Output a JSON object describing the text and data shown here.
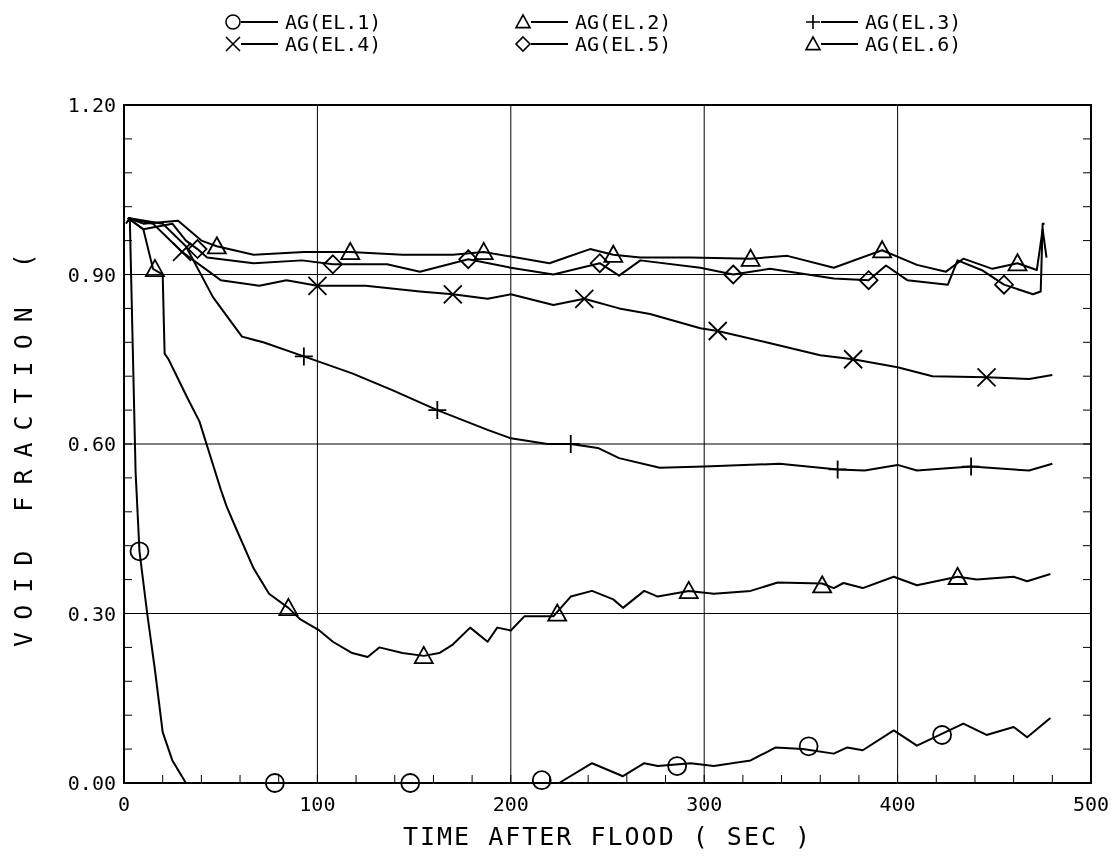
{
  "chart_data": {
    "type": "line",
    "xlabel": "TIME AFTER FLOOD  ( SEC )",
    "ylabel": "VOID FRACTION (",
    "xlim": [
      0,
      500
    ],
    "ylim": [
      0,
      1.2
    ],
    "xticks": [
      0,
      {
        "value": 20,
        "label": null
      },
      {
        "value": 40,
        "label": null
      },
      {
        "value": 60,
        "label": null
      },
      {
        "value": 80,
        "label": null
      },
      100,
      {
        "value": 120,
        "label": null
      },
      {
        "value": 140,
        "label": null
      },
      {
        "value": 160,
        "label": null
      },
      {
        "value": 180,
        "label": null
      },
      200,
      {
        "value": 220,
        "label": null
      },
      {
        "value": 240,
        "label": null
      },
      {
        "value": 260,
        "label": null
      },
      {
        "value": 280,
        "label": null
      },
      300,
      {
        "value": 320,
        "label": null
      },
      {
        "value": 340,
        "label": null
      },
      {
        "value": 360,
        "label": null
      },
      {
        "value": 380,
        "label": null
      },
      400,
      {
        "value": 420,
        "label": null
      },
      {
        "value": 440,
        "label": null
      },
      {
        "value": 460,
        "label": null
      },
      {
        "value": 480,
        "label": null
      },
      500
    ],
    "yticks": [
      {
        "value": 0,
        "label": "0.00"
      },
      {
        "value": 0.06,
        "label": null
      },
      {
        "value": 0.12,
        "label": null
      },
      {
        "value": 0.18,
        "label": null
      },
      {
        "value": 0.24,
        "label": null
      },
      {
        "value": 0.3,
        "label": "0.30"
      },
      {
        "value": 0.36,
        "label": null
      },
      {
        "value": 0.42,
        "label": null
      },
      {
        "value": 0.48,
        "label": null
      },
      {
        "value": 0.54,
        "label": null
      },
      {
        "value": 0.6,
        "label": "0.60"
      },
      {
        "value": 0.66,
        "label": null
      },
      {
        "value": 0.72,
        "label": null
      },
      {
        "value": 0.78,
        "label": null
      },
      {
        "value": 0.84,
        "label": null
      },
      {
        "value": 0.9,
        "label": "0.90"
      },
      {
        "value": 0.96,
        "label": null
      },
      {
        "value": 1.02,
        "label": null
      },
      {
        "value": 1.08,
        "label": null
      },
      {
        "value": 1.14,
        "label": null
      },
      {
        "value": 1.2,
        "label": "1.20"
      }
    ],
    "grid": true,
    "legend": "top",
    "line_style": "solid",
    "series": [
      {
        "name": "AG(EL.1)",
        "color": "#000000",
        "x": [
          1,
          3,
          5,
          6,
          8,
          12,
          16,
          20,
          25,
          32,
          100,
          200,
          225,
          242,
          258,
          269,
          276,
          293,
          305,
          324,
          337,
          351,
          367,
          374,
          382,
          398,
          410,
          434,
          446,
          460,
          467,
          479
        ],
        "values": [
          0.99,
          1.0,
          0.7,
          0.55,
          0.41,
          0.3,
          0.2,
          0.09,
          0.04,
          0,
          0,
          0,
          0,
          0.035,
          0.012,
          0.035,
          0.03,
          0.035,
          0.03,
          0.04,
          0.063,
          0.06,
          0.052,
          0.063,
          0.058,
          0.093,
          0.066,
          0.105,
          0.085,
          0.099,
          0.081,
          0.115
        ]
      },
      {
        "name": "AG(EL.2)",
        "color": "#000000",
        "x": [
          2,
          10,
          15,
          20,
          21,
          23,
          33,
          39,
          50,
          53,
          58,
          67,
          75,
          85,
          91,
          101,
          108,
          118,
          126,
          132,
          144,
          155,
          163,
          170,
          179,
          188,
          193,
          200,
          207,
          222,
          231,
          242,
          253,
          258,
          269,
          276,
          292,
          305,
          324,
          338,
          361,
          367,
          372,
          382,
          398,
          410,
          431,
          441,
          460,
          467,
          479
        ],
        "values": [
          1.0,
          0.98,
          0.91,
          0.9,
          0.76,
          0.75,
          0.68,
          0.64,
          0.52,
          0.49,
          0.45,
          0.38,
          0.335,
          0.31,
          0.29,
          0.27,
          0.25,
          0.23,
          0.223,
          0.24,
          0.23,
          0.225,
          0.23,
          0.245,
          0.275,
          0.25,
          0.275,
          0.27,
          0.295,
          0.295,
          0.33,
          0.34,
          0.325,
          0.31,
          0.34,
          0.33,
          0.34,
          0.335,
          0.34,
          0.355,
          0.353,
          0.345,
          0.354,
          0.345,
          0.365,
          0.35,
          0.365,
          0.36,
          0.365,
          0.357,
          0.37
        ]
      },
      {
        "name": "AG(EL.3)",
        "color": "#000000",
        "x": [
          2,
          20,
          32,
          46,
          61,
          72,
          93,
          118,
          139,
          162,
          188,
          200,
          219,
          231,
          245,
          256,
          277,
          300,
          339,
          369,
          383,
          400,
          410,
          438,
          468,
          480
        ],
        "values": [
          1.0,
          0.99,
          0.95,
          0.86,
          0.79,
          0.78,
          0.755,
          0.725,
          0.695,
          0.66,
          0.625,
          0.61,
          0.6,
          0.6,
          0.593,
          0.575,
          0.558,
          0.56,
          0.565,
          0.555,
          0.553,
          0.563,
          0.553,
          0.56,
          0.553,
          0.565
        ]
      },
      {
        "name": "AG(EL.4)",
        "color": "#000000",
        "x": [
          2,
          15,
          27,
          30,
          50,
          70,
          84,
          100,
          125,
          153,
          170,
          188,
          200,
          222,
          238,
          256,
          272,
          298,
          307,
          332,
          360,
          377,
          400,
          418,
          446,
          468,
          480
        ],
        "values": [
          1.0,
          0.99,
          0.95,
          0.94,
          0.89,
          0.88,
          0.89,
          0.88,
          0.88,
          0.87,
          0.865,
          0.857,
          0.865,
          0.846,
          0.857,
          0.84,
          0.83,
          0.805,
          0.8,
          0.78,
          0.757,
          0.75,
          0.736,
          0.72,
          0.718,
          0.715,
          0.722
        ]
      },
      {
        "name": "AG(EL.5)",
        "color": "#000000",
        "x": [
          2,
          10,
          25,
          32,
          38,
          43,
          67,
          92,
          108,
          136,
          153,
          178,
          200,
          222,
          246,
          256,
          267,
          298,
          315,
          334,
          367,
          385,
          394,
          405,
          426,
          431,
          444,
          455,
          470,
          474,
          475,
          476
        ],
        "values": [
          1.0,
          0.98,
          0.99,
          0.96,
          0.945,
          0.93,
          0.92,
          0.925,
          0.918,
          0.918,
          0.905,
          0.927,
          0.912,
          0.9,
          0.92,
          0.898,
          0.925,
          0.912,
          0.9,
          0.91,
          0.893,
          0.89,
          0.916,
          0.89,
          0.882,
          0.925,
          0.907,
          0.882,
          0.865,
          0.87,
          0.99,
          0.99
        ]
      },
      {
        "name": "AG(EL.6)",
        "color": "#000000",
        "x": [
          2,
          10,
          28,
          40,
          48,
          67,
          93,
          117,
          144,
          170,
          186,
          220,
          241,
          253,
          267,
          293,
          324,
          343,
          367,
          392,
          410,
          425,
          434,
          449,
          462,
          472,
          475,
          477
        ],
        "values": [
          1.0,
          0.99,
          0.995,
          0.96,
          0.95,
          0.935,
          0.94,
          0.94,
          0.935,
          0.935,
          0.94,
          0.92,
          0.945,
          0.935,
          0.93,
          0.93,
          0.928,
          0.933,
          0.912,
          0.943,
          0.917,
          0.905,
          0.928,
          0.91,
          0.92,
          0.908,
          0.98,
          0.93
        ]
      },
      {
        "type": "scatter",
        "color": "#000000",
        "marker": "circle",
        "x": [
          8,
          78,
          148,
          216,
          286,
          354,
          423
        ],
        "values": [
          0.41,
          0,
          0,
          0.005,
          0.03,
          0.065,
          0.085
        ]
      },
      {
        "type": "scatter",
        "color": "#000000",
        "marker": "triangle",
        "x": [
          16,
          85,
          155,
          224,
          292,
          361,
          431
        ],
        "values": [
          0.91,
          0.31,
          0.225,
          0.3,
          0.34,
          0.35,
          0.365
        ]
      },
      {
        "type": "scatter",
        "color": "#000000",
        "marker": "plus",
        "x": [
          93,
          162,
          231,
          369,
          438
        ],
        "values": [
          0.755,
          0.66,
          0.6,
          0.555,
          0.56
        ]
      },
      {
        "type": "scatter",
        "color": "#000000",
        "marker": "cross",
        "x": [
          30,
          100,
          170,
          238,
          307,
          377,
          446
        ],
        "values": [
          0.94,
          0.88,
          0.865,
          0.857,
          0.8,
          0.75,
          0.718
        ]
      },
      {
        "type": "scatter",
        "color": "#000000",
        "marker": "diamond",
        "x": [
          38,
          108,
          178,
          246,
          315,
          385,
          455
        ],
        "values": [
          0.945,
          0.918,
          0.927,
          0.92,
          0.9,
          0.89,
          0.882
        ]
      },
      {
        "type": "scatter",
        "color": "#000000",
        "marker": "triangle",
        "x": [
          48,
          117,
          186,
          253,
          324,
          392,
          462
        ],
        "values": [
          0.95,
          0.94,
          0.94,
          0.935,
          0.928,
          0.943,
          0.92
        ]
      }
    ]
  }
}
